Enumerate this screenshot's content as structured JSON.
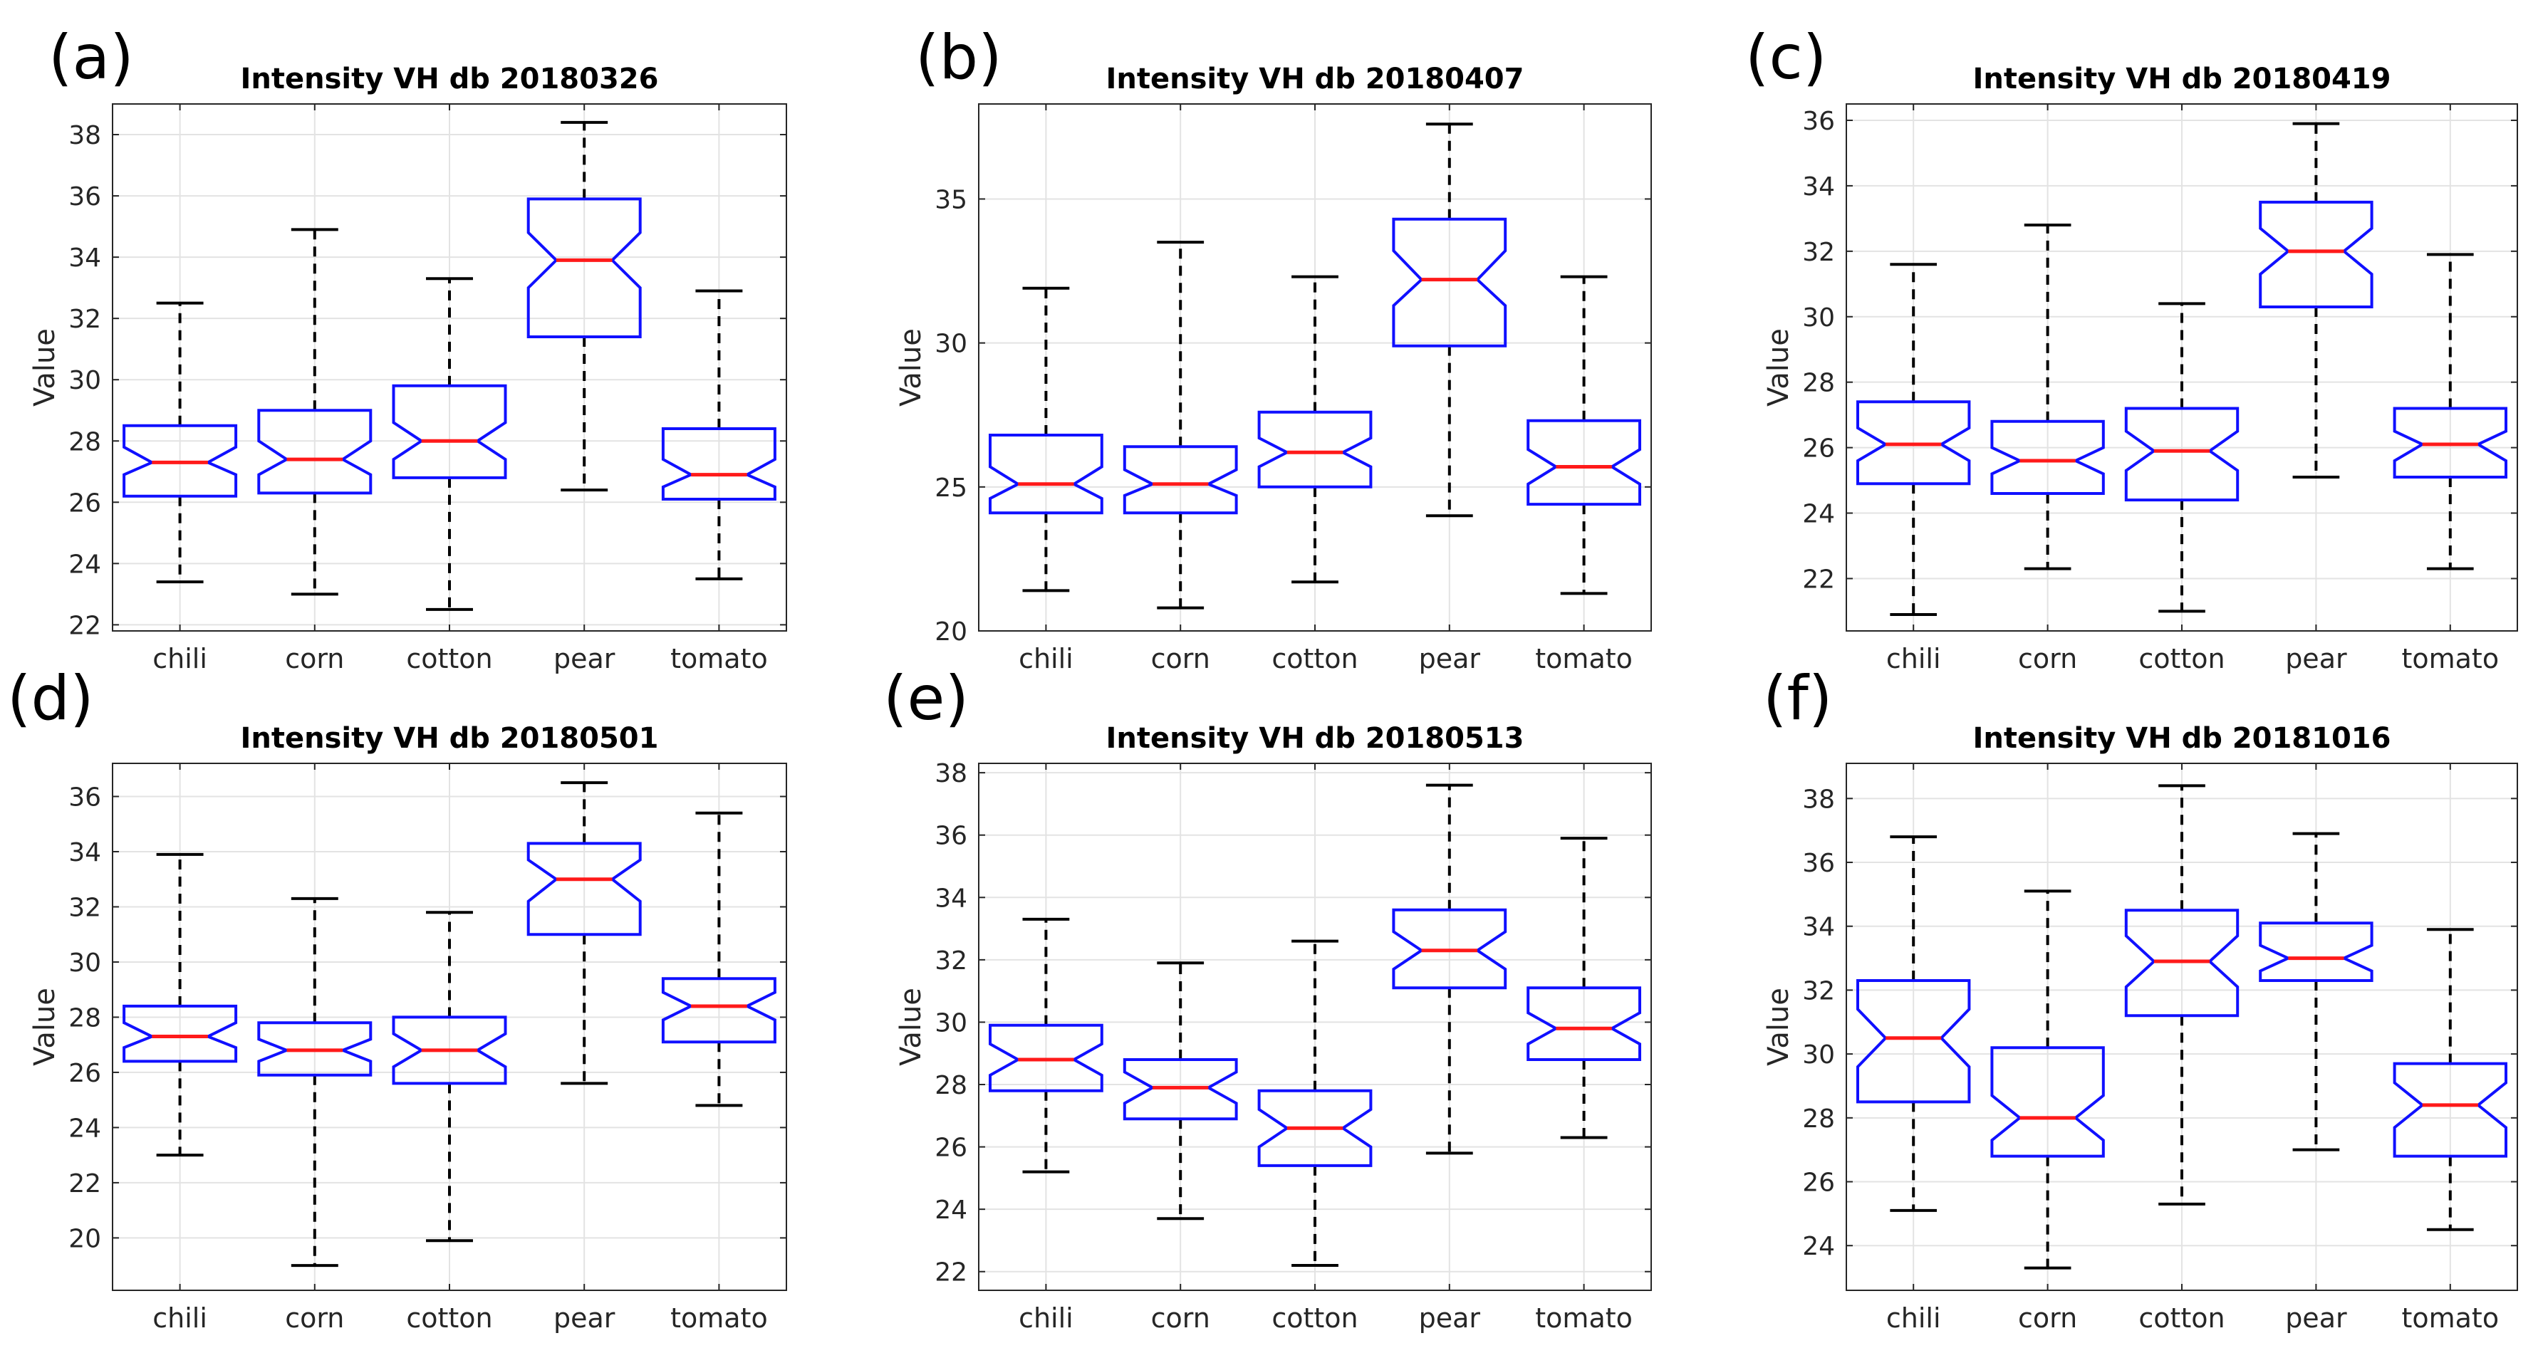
{
  "chart_data": [
    {
      "type": "boxplot",
      "label": "(a)",
      "title": "Intensity VH db 20180326",
      "ylabel": "Value",
      "categories": [
        "chili",
        "corn",
        "cotton",
        "pear",
        "tomato"
      ],
      "ylim": [
        21.8,
        39.0
      ],
      "yticks": [
        22,
        24,
        26,
        28,
        30,
        32,
        34,
        36,
        38
      ],
      "boxes": [
        {
          "category": "chili",
          "whisker_low": 23.4,
          "q1": 26.2,
          "median": 27.3,
          "q3": 28.5,
          "whisker_high": 32.5,
          "notch_low": 26.9,
          "notch_high": 27.8
        },
        {
          "category": "corn",
          "whisker_low": 23.0,
          "q1": 26.3,
          "median": 27.4,
          "q3": 29.0,
          "whisker_high": 34.9,
          "notch_low": 26.9,
          "notch_high": 28.0
        },
        {
          "category": "cotton",
          "whisker_low": 22.5,
          "q1": 26.8,
          "median": 28.0,
          "q3": 29.8,
          "whisker_high": 33.3,
          "notch_low": 27.4,
          "notch_high": 28.6
        },
        {
          "category": "pear",
          "whisker_low": 26.4,
          "q1": 31.4,
          "median": 33.9,
          "q3": 35.9,
          "whisker_high": 38.4,
          "notch_low": 33.0,
          "notch_high": 34.8
        },
        {
          "category": "tomato",
          "whisker_low": 23.5,
          "q1": 26.1,
          "median": 26.9,
          "q3": 28.4,
          "whisker_high": 32.9,
          "notch_low": 26.5,
          "notch_high": 27.4
        }
      ]
    },
    {
      "type": "boxplot",
      "label": "(b)",
      "title": "Intensity VH db 20180407",
      "ylabel": "Value",
      "categories": [
        "chili",
        "corn",
        "cotton",
        "pear",
        "tomato"
      ],
      "ylim": [
        20.0,
        38.3
      ],
      "yticks": [
        20,
        25,
        30,
        35
      ],
      "boxes": [
        {
          "category": "chili",
          "whisker_low": 21.4,
          "q1": 24.1,
          "median": 25.1,
          "q3": 26.8,
          "whisker_high": 31.9,
          "notch_low": 24.6,
          "notch_high": 25.7
        },
        {
          "category": "corn",
          "whisker_low": 20.8,
          "q1": 24.1,
          "median": 25.1,
          "q3": 26.4,
          "whisker_high": 33.5,
          "notch_low": 24.7,
          "notch_high": 25.6
        },
        {
          "category": "cotton",
          "whisker_low": 21.7,
          "q1": 25.0,
          "median": 26.2,
          "q3": 27.6,
          "whisker_high": 32.3,
          "notch_low": 25.7,
          "notch_high": 26.7
        },
        {
          "category": "pear",
          "whisker_low": 24.0,
          "q1": 29.9,
          "median": 32.2,
          "q3": 34.3,
          "whisker_high": 37.6,
          "notch_low": 31.3,
          "notch_high": 33.2
        },
        {
          "category": "tomato",
          "whisker_low": 21.3,
          "q1": 24.4,
          "median": 25.7,
          "q3": 27.3,
          "whisker_high": 32.3,
          "notch_low": 25.1,
          "notch_high": 26.3
        }
      ]
    },
    {
      "type": "boxplot",
      "label": "(c)",
      "title": "Intensity VH db 20180419",
      "ylabel": "Value",
      "categories": [
        "chili",
        "corn",
        "cotton",
        "pear",
        "tomato"
      ],
      "ylim": [
        20.4,
        36.5
      ],
      "yticks": [
        22,
        24,
        26,
        28,
        30,
        32,
        34,
        36
      ],
      "boxes": [
        {
          "category": "chili",
          "whisker_low": 20.9,
          "q1": 24.9,
          "median": 26.1,
          "q3": 27.4,
          "whisker_high": 31.6,
          "notch_low": 25.6,
          "notch_high": 26.6
        },
        {
          "category": "corn",
          "whisker_low": 22.3,
          "q1": 24.6,
          "median": 25.6,
          "q3": 26.8,
          "whisker_high": 32.8,
          "notch_low": 25.2,
          "notch_high": 26.0
        },
        {
          "category": "cotton",
          "whisker_low": 21.0,
          "q1": 24.4,
          "median": 25.9,
          "q3": 27.2,
          "whisker_high": 30.4,
          "notch_low": 25.3,
          "notch_high": 26.5
        },
        {
          "category": "pear",
          "whisker_low": 25.1,
          "q1": 30.3,
          "median": 32.0,
          "q3": 33.5,
          "whisker_high": 35.9,
          "notch_low": 31.3,
          "notch_high": 32.7
        },
        {
          "category": "tomato",
          "whisker_low": 22.3,
          "q1": 25.1,
          "median": 26.1,
          "q3": 27.2,
          "whisker_high": 31.9,
          "notch_low": 25.6,
          "notch_high": 26.5
        }
      ]
    },
    {
      "type": "boxplot",
      "label": "(d)",
      "title": "Intensity VH db 20180501",
      "ylabel": "Value",
      "categories": [
        "chili",
        "corn",
        "cotton",
        "pear",
        "tomato"
      ],
      "ylim": [
        18.1,
        37.2
      ],
      "yticks": [
        20,
        22,
        24,
        26,
        28,
        30,
        32,
        34,
        36
      ],
      "boxes": [
        {
          "category": "chili",
          "whisker_low": 23.0,
          "q1": 26.4,
          "median": 27.3,
          "q3": 28.4,
          "whisker_high": 33.9,
          "notch_low": 26.9,
          "notch_high": 27.8
        },
        {
          "category": "corn",
          "whisker_low": 19.0,
          "q1": 25.9,
          "median": 26.8,
          "q3": 27.8,
          "whisker_high": 32.3,
          "notch_low": 26.4,
          "notch_high": 27.2
        },
        {
          "category": "cotton",
          "whisker_low": 19.9,
          "q1": 25.6,
          "median": 26.8,
          "q3": 28.0,
          "whisker_high": 31.8,
          "notch_low": 26.2,
          "notch_high": 27.4
        },
        {
          "category": "pear",
          "whisker_low": 25.6,
          "q1": 31.0,
          "median": 33.0,
          "q3": 34.3,
          "whisker_high": 36.5,
          "notch_low": 32.2,
          "notch_high": 33.7
        },
        {
          "category": "tomato",
          "whisker_low": 24.8,
          "q1": 27.1,
          "median": 28.4,
          "q3": 29.4,
          "whisker_high": 35.4,
          "notch_low": 27.9,
          "notch_high": 28.9
        }
      ]
    },
    {
      "type": "boxplot",
      "label": "(e)",
      "title": "Intensity VH db 20180513",
      "ylabel": "Value",
      "categories": [
        "chili",
        "corn",
        "cotton",
        "pear",
        "tomato"
      ],
      "ylim": [
        21.4,
        38.3
      ],
      "yticks": [
        22,
        24,
        26,
        28,
        30,
        32,
        34,
        36,
        38
      ],
      "boxes": [
        {
          "category": "chili",
          "whisker_low": 25.2,
          "q1": 27.8,
          "median": 28.8,
          "q3": 29.9,
          "whisker_high": 33.3,
          "notch_low": 28.3,
          "notch_high": 29.3
        },
        {
          "category": "corn",
          "whisker_low": 23.7,
          "q1": 26.9,
          "median": 27.9,
          "q3": 28.8,
          "whisker_high": 31.9,
          "notch_low": 27.4,
          "notch_high": 28.4
        },
        {
          "category": "cotton",
          "whisker_low": 22.2,
          "q1": 25.4,
          "median": 26.6,
          "q3": 27.8,
          "whisker_high": 32.6,
          "notch_low": 26.0,
          "notch_high": 27.2
        },
        {
          "category": "pear",
          "whisker_low": 25.8,
          "q1": 31.1,
          "median": 32.3,
          "q3": 33.6,
          "whisker_high": 37.6,
          "notch_low": 31.7,
          "notch_high": 32.9
        },
        {
          "category": "tomato",
          "whisker_low": 26.3,
          "q1": 28.8,
          "median": 29.8,
          "q3": 31.1,
          "whisker_high": 35.9,
          "notch_low": 29.3,
          "notch_high": 30.3
        }
      ]
    },
    {
      "type": "boxplot",
      "label": "(f)",
      "title": "Intensity VH db 20181016",
      "ylabel": "Value",
      "categories": [
        "chili",
        "corn",
        "cotton",
        "pear",
        "tomato"
      ],
      "ylim": [
        22.6,
        39.1
      ],
      "yticks": [
        24,
        26,
        28,
        30,
        32,
        34,
        36,
        38
      ],
      "boxes": [
        {
          "category": "chili",
          "whisker_low": 25.1,
          "q1": 28.5,
          "median": 30.5,
          "q3": 32.3,
          "whisker_high": 36.8,
          "notch_low": 29.6,
          "notch_high": 31.4
        },
        {
          "category": "corn",
          "whisker_low": 23.3,
          "q1": 26.8,
          "median": 28.0,
          "q3": 30.2,
          "whisker_high": 35.1,
          "notch_low": 27.3,
          "notch_high": 28.7
        },
        {
          "category": "cotton",
          "whisker_low": 25.3,
          "q1": 31.2,
          "median": 32.9,
          "q3": 34.5,
          "whisker_high": 38.4,
          "notch_low": 32.1,
          "notch_high": 33.7
        },
        {
          "category": "pear",
          "whisker_low": 27.0,
          "q1": 32.3,
          "median": 33.0,
          "q3": 34.1,
          "whisker_high": 36.9,
          "notch_low": 32.6,
          "notch_high": 33.4
        },
        {
          "category": "tomato",
          "whisker_low": 24.5,
          "q1": 26.8,
          "median": 28.4,
          "q3": 29.7,
          "whisker_high": 33.9,
          "notch_low": 27.7,
          "notch_high": 29.1
        }
      ]
    }
  ]
}
